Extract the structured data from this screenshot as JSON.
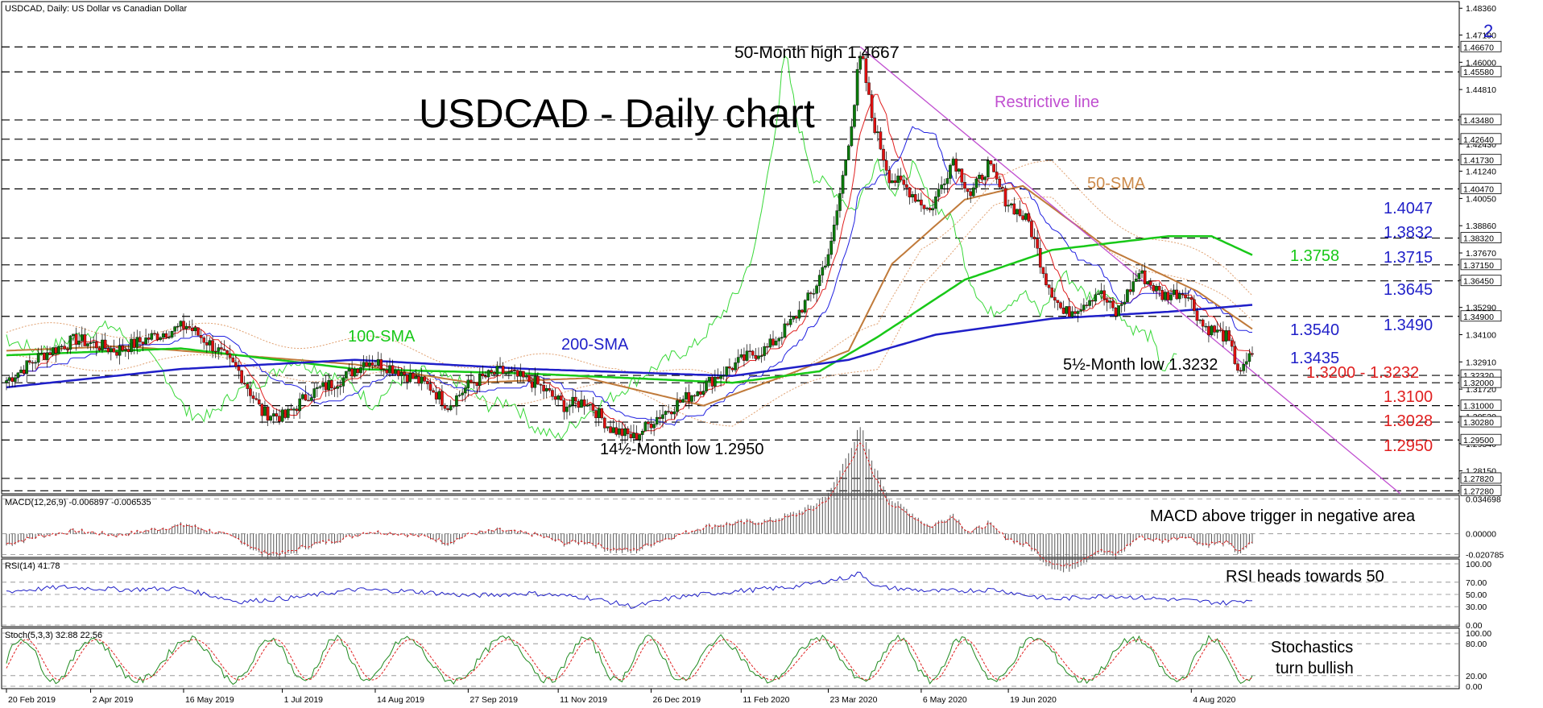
{
  "chart_data": {
    "type": "line",
    "symbol_header": "USDCAD, Daily:  US Dollar vs Canadian Dollar",
    "title": "USDCAD - Daily chart",
    "corner_mark": "2",
    "x_ticks": [
      "20 Feb 2019",
      "2 Apr 2019",
      "16 May 2019",
      "1 Jul 2019",
      "14 Aug 2019",
      "27 Sep 2019",
      "11 Nov 2019",
      "26 Dec 2019",
      "11 Feb 2020",
      "23 Mar 2020",
      "6 May 2020",
      "19 Jun 2020",
      "4 Aug 2020"
    ],
    "y_ticks": [
      "1.48360",
      "1.47190",
      "1.46000",
      "1.44810",
      "1.43620",
      "1.42430",
      "1.41240",
      "1.40050",
      "1.38860",
      "1.37670",
      "1.36480",
      "1.35290",
      "1.34100",
      "1.32910",
      "1.31720",
      "1.30530",
      "1.29340",
      "1.28150"
    ],
    "ylim": [
      1.2715,
      1.4865
    ],
    "level_labels": [
      "1.46670",
      "1.45580",
      "1.43480",
      "1.42640",
      "1.41730",
      "1.40470",
      "1.38320",
      "1.37150",
      "1.36450",
      "1.34900",
      "1.32320",
      "1.32000",
      "1.31000",
      "1.30280",
      "1.29500",
      "1.27820",
      "1.27280"
    ],
    "levels": [
      1.4667,
      1.4558,
      1.4348,
      1.4264,
      1.4173,
      1.4047,
      1.3832,
      1.3715,
      1.3645,
      1.349,
      1.3232,
      1.32,
      1.31,
      1.3028,
      1.295,
      1.2782,
      1.2728
    ],
    "annotations": {
      "high": "50-Month high 1.4667",
      "restrictive_line": "Restrictive line",
      "sma50": "50-SMA",
      "sma100": "100-SMA",
      "sma200": "200-SMA",
      "low_5m": "5½-Month low 1.3232",
      "low_14m": "14½-Month low 1.2950",
      "sma100_value": "1.3758",
      "sma200_value": "1.3540",
      "sma50_value": "1.3435"
    },
    "resistance_labels": [
      "1.4047",
      "1.3832",
      "1.3715",
      "1.3645",
      "1.3490"
    ],
    "support_labels": [
      "1.3200 - 1.3232",
      "1.3100",
      "1.3028",
      "1.2950"
    ],
    "macd": {
      "header": "MACD(12,26,9) -0.006897 -0.006535",
      "annotation": "MACD above trigger in negative area",
      "ticks": [
        "0.034698",
        "0.00000",
        "-0.020785"
      ],
      "ylim": [
        -0.022,
        0.036
      ]
    },
    "rsi": {
      "header": "RSI(14) 41.78",
      "annotation": "RSI heads towards 50",
      "ticks": [
        "100.00",
        "70.00",
        "50.00",
        "30.00",
        "0.00"
      ],
      "ylim": [
        0,
        100
      ]
    },
    "stoch": {
      "header": "Stoch(5,3,3) 32.88 22.56",
      "annotation_line1": "Stochastics",
      "annotation_line2": "turn bullish",
      "ticks": [
        "100.00",
        "80.00",
        "20.00",
        "0.00"
      ],
      "ylim": [
        0,
        100
      ]
    },
    "price_anchors": [
      [
        0,
        1.321
      ],
      [
        12,
        1.332
      ],
      [
        24,
        1.339
      ],
      [
        38,
        1.334
      ],
      [
        52,
        1.341
      ],
      [
        62,
        1.345
      ],
      [
        72,
        1.335
      ],
      [
        80,
        1.325
      ],
      [
        88,
        1.307
      ],
      [
        96,
        1.305
      ],
      [
        104,
        1.315
      ],
      [
        116,
        1.322
      ],
      [
        124,
        1.33
      ],
      [
        134,
        1.326
      ],
      [
        146,
        1.318
      ],
      [
        152,
        1.31
      ],
      [
        160,
        1.32
      ],
      [
        170,
        1.325
      ],
      [
        182,
        1.32
      ],
      [
        192,
        1.31
      ],
      [
        200,
        1.312
      ],
      [
        208,
        1.3
      ],
      [
        216,
        1.296
      ],
      [
        224,
        1.305
      ],
      [
        236,
        1.315
      ],
      [
        246,
        1.324
      ],
      [
        256,
        1.332
      ],
      [
        262,
        1.335
      ],
      [
        270,
        1.346
      ],
      [
        278,
        1.36
      ],
      [
        284,
        1.38
      ],
      [
        288,
        1.41
      ],
      [
        292,
        1.442
      ],
      [
        294,
        1.4667
      ],
      [
        298,
        1.436
      ],
      [
        304,
        1.41
      ],
      [
        310,
        1.405
      ],
      [
        318,
        1.395
      ],
      [
        326,
        1.418
      ],
      [
        332,
        1.402
      ],
      [
        338,
        1.415
      ],
      [
        344,
        1.4
      ],
      [
        352,
        1.39
      ],
      [
        358,
        1.365
      ],
      [
        364,
        1.35
      ],
      [
        370,
        1.354
      ],
      [
        376,
        1.36
      ],
      [
        382,
        1.35
      ],
      [
        390,
        1.368
      ],
      [
        398,
        1.358
      ],
      [
        406,
        1.36
      ],
      [
        412,
        1.345
      ],
      [
        420,
        1.34
      ],
      [
        425,
        1.3232
      ],
      [
        429,
        1.333
      ]
    ],
    "sma200_anchors": [
      [
        0,
        1.318
      ],
      [
        60,
        1.326
      ],
      [
        120,
        1.33
      ],
      [
        180,
        1.326
      ],
      [
        250,
        1.323
      ],
      [
        290,
        1.33
      ],
      [
        320,
        1.341
      ],
      [
        360,
        1.348
      ],
      [
        400,
        1.351
      ],
      [
        429,
        1.354
      ]
    ],
    "sma100_anchors": [
      [
        0,
        1.332
      ],
      [
        60,
        1.335
      ],
      [
        120,
        1.326
      ],
      [
        180,
        1.324
      ],
      [
        250,
        1.32
      ],
      [
        280,
        1.325
      ],
      [
        300,
        1.34
      ],
      [
        330,
        1.365
      ],
      [
        360,
        1.378
      ],
      [
        400,
        1.384
      ],
      [
        415,
        1.384
      ],
      [
        429,
        1.3758
      ]
    ],
    "sma50_anchors": [
      [
        0,
        1.334
      ],
      [
        40,
        1.336
      ],
      [
        80,
        1.332
      ],
      [
        120,
        1.328
      ],
      [
        160,
        1.32
      ],
      [
        200,
        1.322
      ],
      [
        240,
        1.31
      ],
      [
        270,
        1.324
      ],
      [
        290,
        1.334
      ],
      [
        305,
        1.372
      ],
      [
        330,
        1.4
      ],
      [
        350,
        1.406
      ],
      [
        380,
        1.378
      ],
      [
        410,
        1.36
      ],
      [
        429,
        1.3435
      ]
    ],
    "restrictive_line": [
      [
        294,
        1.4667
      ],
      [
        480,
        1.2715
      ]
    ],
    "rsi_anchors": [
      [
        0,
        55
      ],
      [
        20,
        62
      ],
      [
        40,
        58
      ],
      [
        60,
        60
      ],
      [
        80,
        38
      ],
      [
        100,
        45
      ],
      [
        120,
        58
      ],
      [
        140,
        55
      ],
      [
        160,
        48
      ],
      [
        180,
        52
      ],
      [
        200,
        45
      ],
      [
        216,
        30
      ],
      [
        230,
        45
      ],
      [
        250,
        55
      ],
      [
        270,
        62
      ],
      [
        290,
        78
      ],
      [
        294,
        85
      ],
      [
        300,
        62
      ],
      [
        320,
        55
      ],
      [
        340,
        58
      ],
      [
        360,
        42
      ],
      [
        380,
        48
      ],
      [
        400,
        42
      ],
      [
        420,
        36
      ],
      [
        429,
        41.78
      ]
    ]
  }
}
